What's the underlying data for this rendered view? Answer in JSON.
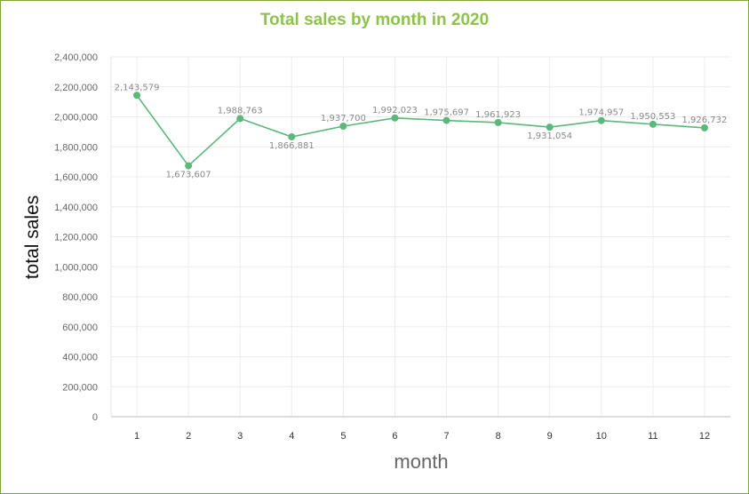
{
  "chart_data": {
    "type": "line",
    "title": "Total sales by month in 2020",
    "xlabel": "month",
    "ylabel": "total sales",
    "categories": [
      "1",
      "2",
      "3",
      "4",
      "5",
      "6",
      "7",
      "8",
      "9",
      "10",
      "11",
      "12"
    ],
    "values": [
      2143579,
      1673607,
      1988763,
      1866881,
      1937700,
      1992023,
      1975697,
      1961923,
      1931054,
      1974957,
      1950553,
      1926732
    ],
    "data_labels": [
      "2,143,579",
      "1,673,607",
      "1,988,763",
      "1,866,881",
      "1,937,700",
      "1,992,023",
      "1,975,697",
      "1,961,923",
      "1,931,054",
      "1,974,957",
      "1,950,553",
      "1,926,732"
    ],
    "y_ticks": [
      "0",
      "200,000",
      "400,000",
      "600,000",
      "800,000",
      "1,000,000",
      "1,200,000",
      "1,400,000",
      "1,600,000",
      "1,800,000",
      "2,000,000",
      "2,200,000",
      "2,400,000"
    ],
    "ylim": [
      0,
      2400000
    ],
    "grid": true,
    "colors": {
      "line": "#5cb87a",
      "title": "#8dc34a",
      "frame": "#7aa63a",
      "grid": "#ececec"
    }
  }
}
